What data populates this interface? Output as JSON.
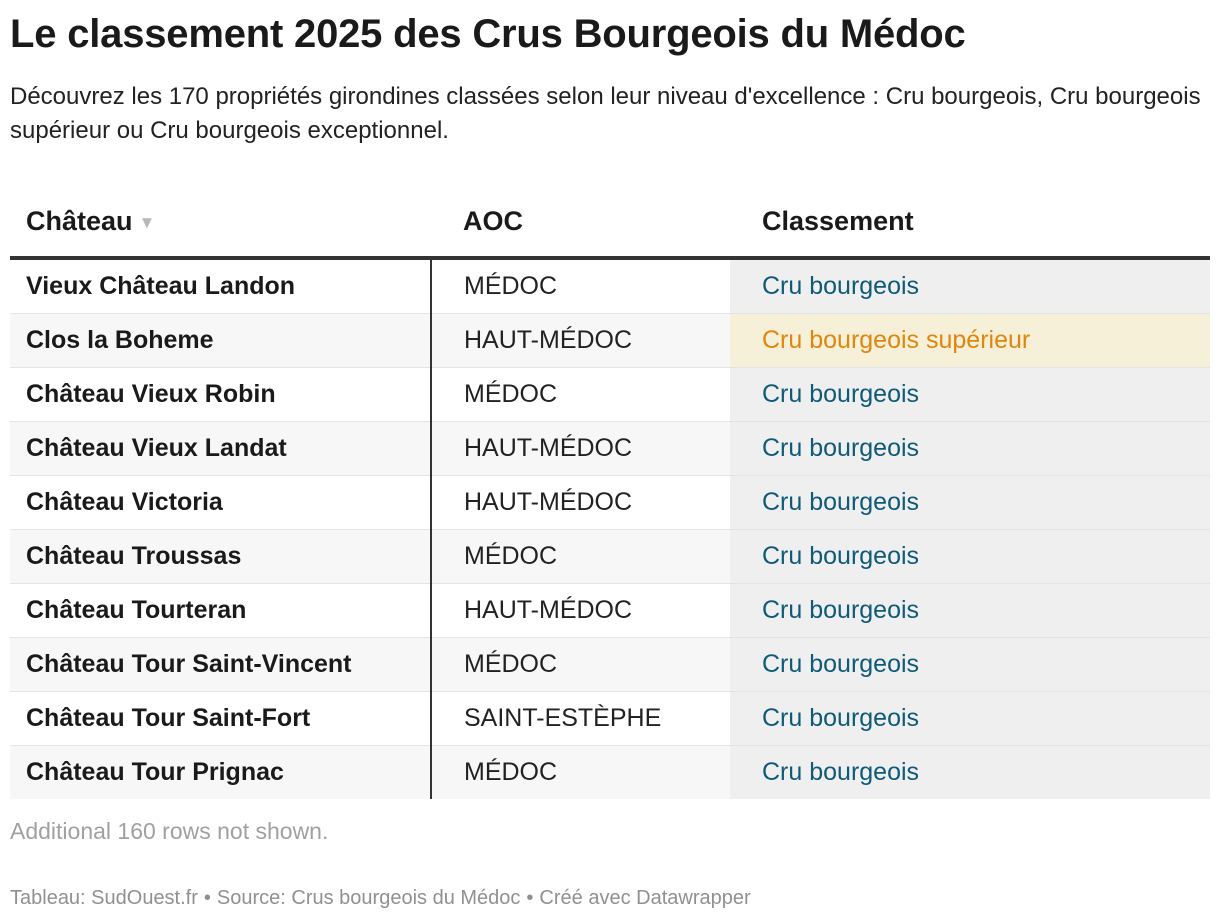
{
  "title": "Le classement 2025 des Crus Bourgeois du Médoc",
  "description": "Découvrez les 170 propriétés girondines classées selon leur niveau d'excellence : Cru bourgeois, Cru bourgeois supérieur ou Cru bourgeois exceptionnel.",
  "chart_data": {
    "type": "table",
    "columns": [
      "Château",
      "AOC",
      "Classement"
    ],
    "sort": {
      "column": "Château",
      "direction": "descending",
      "icon": "sort-desc-icon"
    },
    "rows": [
      {
        "chateau": "Vieux Château Landon",
        "aoc": "MÉDOC",
        "classement": "Cru bourgeois"
      },
      {
        "chateau": "Clos la Boheme",
        "aoc": "HAUT-MÉDOC",
        "classement": "Cru bourgeois supérieur"
      },
      {
        "chateau": "Château Vieux Robin",
        "aoc": "MÉDOC",
        "classement": "Cru bourgeois"
      },
      {
        "chateau": "Château Vieux Landat",
        "aoc": "HAUT-MÉDOC",
        "classement": "Cru bourgeois"
      },
      {
        "chateau": "Château Victoria",
        "aoc": "HAUT-MÉDOC",
        "classement": "Cru bourgeois"
      },
      {
        "chateau": "Château Troussas",
        "aoc": "MÉDOC",
        "classement": "Cru bourgeois"
      },
      {
        "chateau": "Château Tourteran",
        "aoc": "HAUT-MÉDOC",
        "classement": "Cru bourgeois"
      },
      {
        "chateau": "Château Tour Saint-Vincent",
        "aoc": "MÉDOC",
        "classement": "Cru bourgeois"
      },
      {
        "chateau": "Château Tour Saint-Fort",
        "aoc": "SAINT-ESTÈPHE",
        "classement": "Cru bourgeois"
      },
      {
        "chateau": "Château Tour Prignac",
        "aoc": "MÉDOC",
        "classement": "Cru bourgeois"
      }
    ],
    "classement_colors": {
      "Cru bourgeois": {
        "text": "#0f5a78",
        "background": "#efefef"
      },
      "Cru bourgeois supérieur": {
        "text": "#e0860c",
        "background": "#f7f0d9"
      }
    }
  },
  "note": "Additional 160 rows not shown.",
  "footer": {
    "credit": "Tableau: SudOuest.fr",
    "source": "Source: Crus bourgeois du Médoc",
    "tool": "Créé avec Datawrapper",
    "separator": "•"
  }
}
